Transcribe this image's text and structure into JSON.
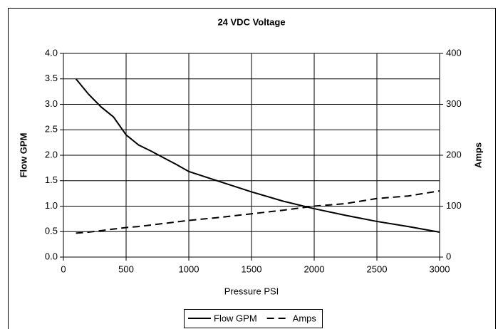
{
  "chart_data": {
    "type": "line",
    "title": "24 VDC Voltage",
    "xlabel": "Pressure PSI",
    "ylabel": "Flow GPM",
    "y2label": "Amps",
    "x": [
      100,
      200,
      300,
      400,
      500,
      600,
      700,
      800,
      900,
      1000,
      1250,
      1500,
      1750,
      2000,
      2250,
      2500,
      2750,
      3000
    ],
    "series": [
      {
        "name": "Flow GPM",
        "color": "#000000",
        "dash": "solid",
        "values": [
          3.5,
          3.2,
          2.95,
          2.75,
          2.4,
          2.2,
          2.08,
          1.95,
          1.82,
          1.68,
          1.48,
          1.28,
          1.1,
          0.95,
          0.82,
          0.7,
          0.6,
          0.49
        ]
      },
      {
        "name": "Amps",
        "color": "#000000",
        "dash": "dashed",
        "axis": "y2",
        "values": [
          47,
          49,
          52,
          55,
          58,
          60,
          63,
          66,
          69,
          72,
          78,
          85,
          92,
          100,
          105,
          115,
          120,
          130
        ]
      }
    ],
    "xlim": [
      0,
      3000
    ],
    "xticks": [
      0,
      500,
      1000,
      1500,
      2000,
      2500,
      3000
    ],
    "ylim": [
      0,
      4
    ],
    "yticks": [
      {
        "value": 0,
        "label": "0.0"
      },
      {
        "value": 0.5,
        "label": "0.5"
      },
      {
        "value": 1,
        "label": "1.0"
      },
      {
        "value": 1.5,
        "label": "1.5"
      },
      {
        "value": 2,
        "label": "2.0"
      },
      {
        "value": 2.5,
        "label": "2.5"
      },
      {
        "value": 3,
        "label": "3.0"
      },
      {
        "value": 3.5,
        "label": "3.5"
      },
      {
        "value": 4,
        "label": "4.0"
      }
    ],
    "y2lim": [
      0,
      400
    ],
    "y2ticks": [
      0,
      100,
      200,
      300,
      400
    ],
    "grid": true,
    "legend": "bottom"
  }
}
